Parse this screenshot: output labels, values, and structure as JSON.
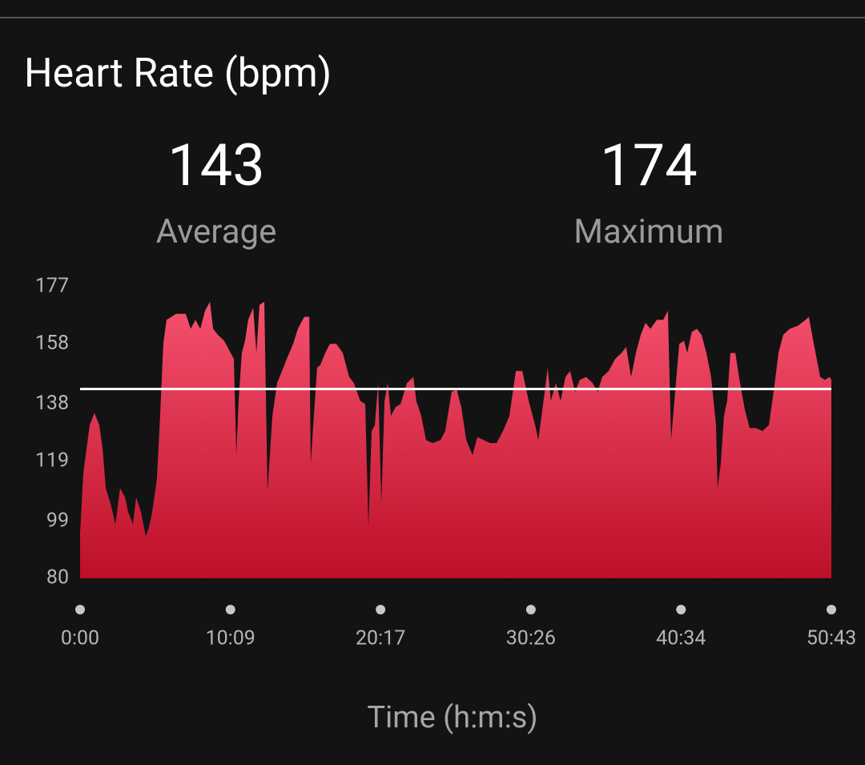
{
  "header": {
    "title": "Heart Rate (bpm)"
  },
  "stats": [
    {
      "value": 143,
      "label": "Average"
    },
    {
      "value": 174,
      "label": "Maximum"
    }
  ],
  "chart_data": {
    "type": "area",
    "x_label": "Time (h:m:s)",
    "x": [
      0,
      13,
      26,
      39,
      58,
      78,
      91,
      104,
      123,
      143,
      162,
      182,
      195,
      214,
      227,
      247,
      266,
      279,
      292,
      311,
      324,
      337,
      350,
      370,
      389,
      428,
      448,
      467,
      487,
      506,
      526,
      539,
      558,
      584,
      610,
      623,
      633,
      642,
      655,
      668,
      681,
      701,
      714,
      727,
      746,
      759,
      779,
      798,
      818,
      837,
      863,
      882,
      908,
      928,
      934,
      947,
      960,
      973,
      993,
      1012,
      1038,
      1064,
      1090,
      1109,
      1135,
      1155,
      1168,
      1181,
      1194,
      1207,
      1220,
      1233,
      1246,
      1259,
      1278,
      1298,
      1324,
      1350,
      1362,
      1382,
      1401,
      1427,
      1460,
      1479,
      1505,
      1525,
      1544,
      1564,
      1590,
      1609,
      1635,
      1661,
      1687,
      1713,
      1739,
      1765,
      1791,
      1817,
      1843,
      1856,
      1869,
      1882,
      1894,
      1907,
      1927,
      1946,
      1966,
      1985,
      2005,
      2024,
      2050,
      2076,
      2096,
      2115,
      2141,
      2167,
      2193,
      2212,
      2232,
      2251,
      2271,
      2290,
      2310,
      2336,
      2362,
      2381,
      2394,
      2407,
      2427,
      2446,
      2459,
      2478,
      2498,
      2517,
      2537,
      2556,
      2576,
      2582,
      2595,
      2608,
      2621,
      2634,
      2654,
      2673,
      2693,
      2712,
      2738,
      2764,
      2790,
      2809,
      2829,
      2848,
      2874,
      2907,
      2939,
      2952,
      2972,
      2998,
      3017,
      3036,
      3043
    ],
    "values": [
      95,
      115,
      123,
      131,
      135,
      131,
      123,
      110,
      105,
      98,
      110,
      107,
      102,
      98,
      107,
      102,
      94,
      97,
      102,
      113,
      134,
      158,
      166,
      167,
      168,
      168,
      163,
      166,
      163,
      169,
      172,
      163,
      161,
      159,
      155,
      153,
      121,
      139,
      155,
      159,
      166,
      170,
      155,
      171,
      172,
      109,
      134,
      145,
      149,
      153,
      158,
      163,
      167,
      167,
      118,
      134,
      150,
      151,
      155,
      158,
      158,
      155,
      147,
      145,
      139,
      138,
      97,
      129,
      131,
      145,
      105,
      139,
      145,
      134,
      137,
      138,
      145,
      147,
      139,
      134,
      126,
      125,
      126,
      129,
      142,
      143,
      137,
      126,
      121,
      127,
      126,
      125,
      125,
      129,
      134,
      149,
      149,
      139,
      131,
      126,
      134,
      142,
      150,
      139,
      145,
      139,
      147,
      149,
      142,
      146,
      147,
      145,
      142,
      147,
      149,
      153,
      155,
      157,
      147,
      155,
      161,
      165,
      163,
      166,
      166,
      169,
      126,
      139,
      158,
      159,
      155,
      162,
      163,
      161,
      155,
      147,
      131,
      110,
      118,
      134,
      139,
      155,
      155,
      145,
      136,
      130,
      130,
      129,
      131,
      142,
      155,
      161,
      163,
      164,
      166,
      167,
      158,
      147,
      146,
      147,
      146
    ],
    "gradient": [
      "#f5516f",
      "#bd0f28"
    ],
    "xlim": [
      0,
      3043
    ],
    "xticks": [
      {
        "value": 0,
        "label": "0:00"
      },
      {
        "value": 609,
        "label": "10:09"
      },
      {
        "value": 1217,
        "label": "20:17"
      },
      {
        "value": 1826,
        "label": "30:26"
      },
      {
        "value": 2434,
        "label": "40:34"
      },
      {
        "value": 3043,
        "label": "50:43"
      }
    ],
    "ylim": [
      80,
      177
    ],
    "yticks": [
      80,
      99,
      119,
      138,
      158,
      177
    ]
  }
}
